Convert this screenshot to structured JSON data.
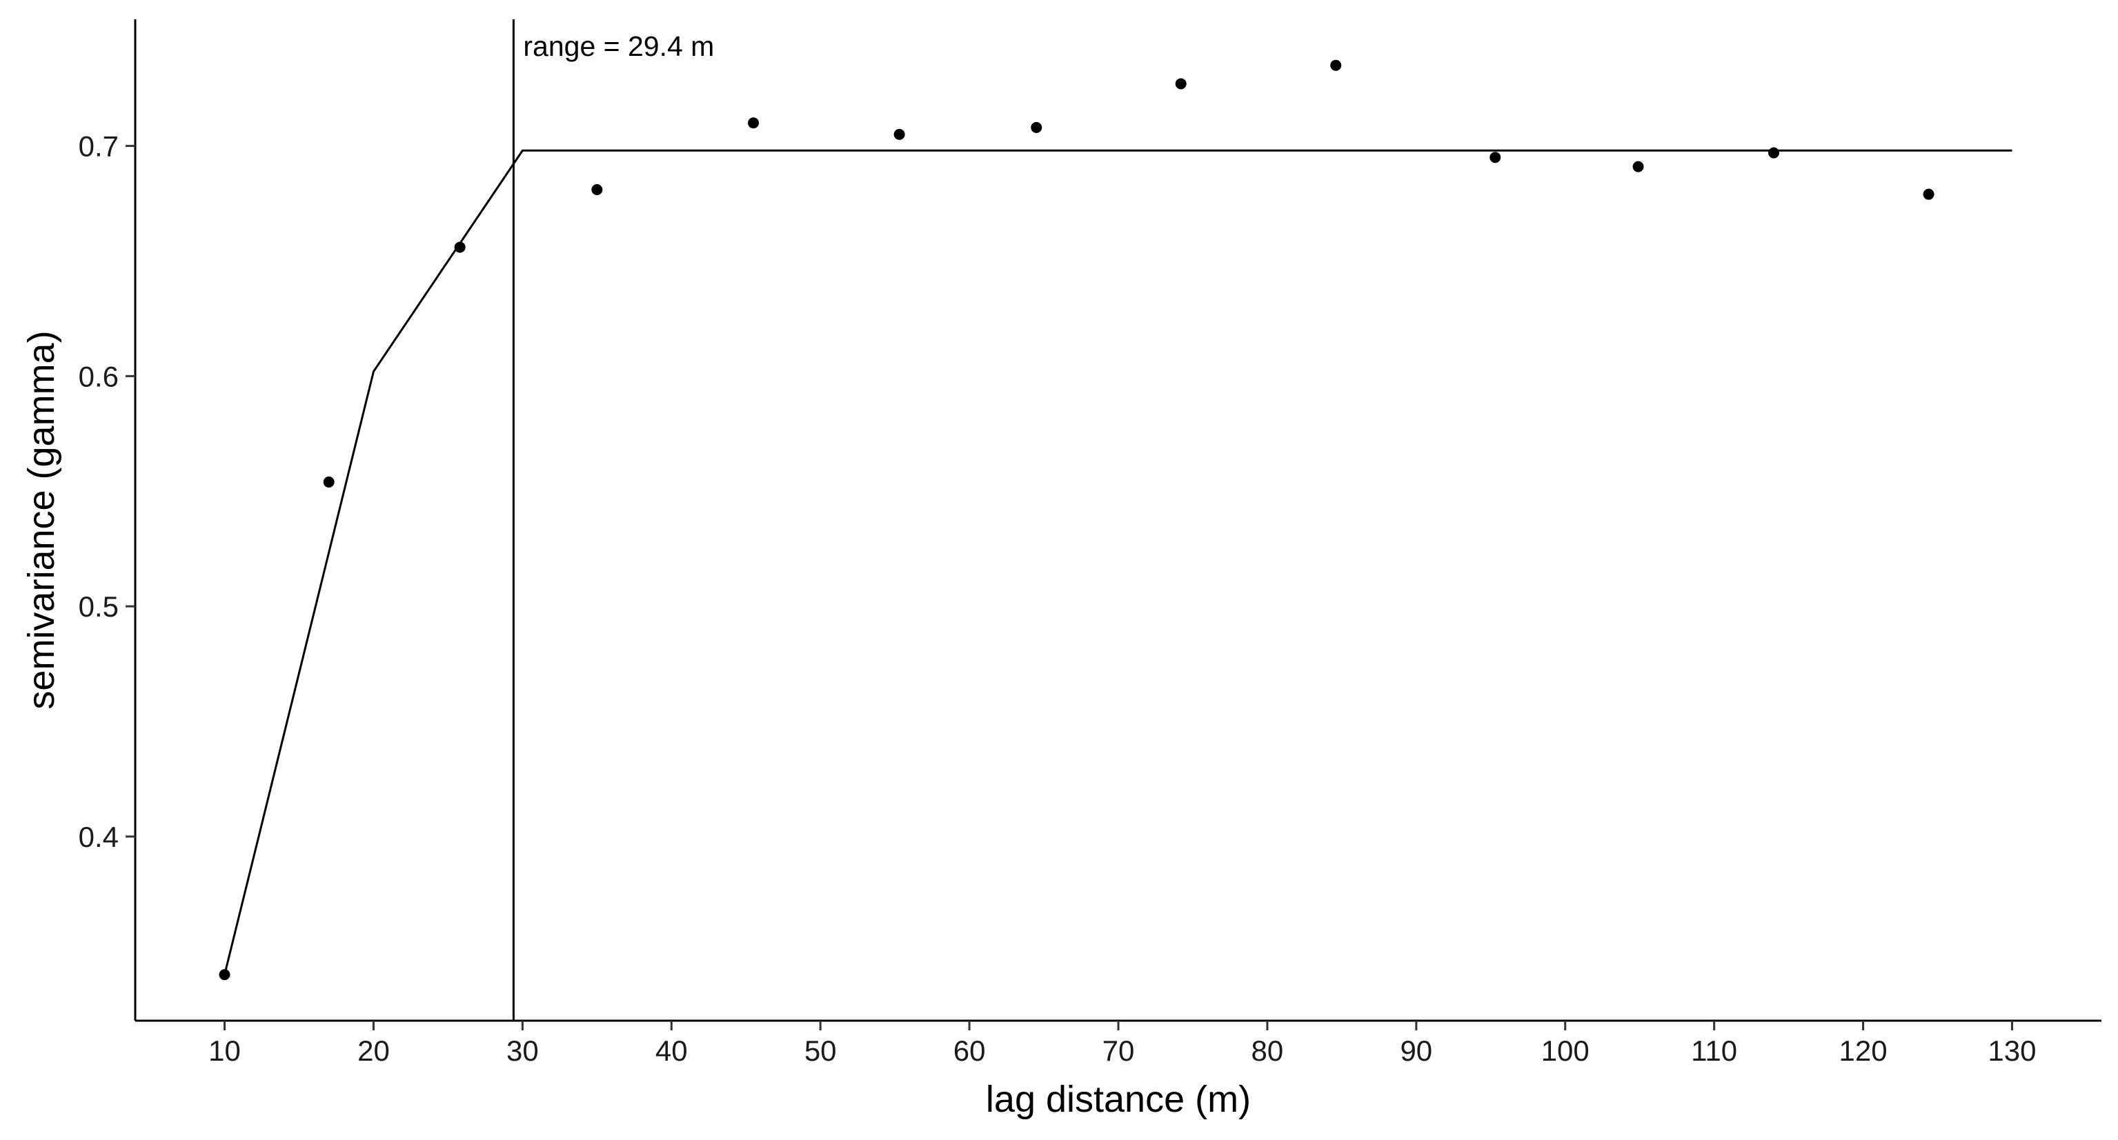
{
  "chart_data": {
    "type": "scatter",
    "title": "",
    "xlabel": "lag distance (m)",
    "ylabel": "semivariance (gamma)",
    "xlim": [
      4,
      136
    ],
    "ylim": [
      0.32,
      0.755
    ],
    "x_ticks": [
      10,
      20,
      30,
      40,
      50,
      60,
      70,
      80,
      90,
      100,
      110,
      120,
      130
    ],
    "x_tick_labels": [
      "10",
      "20",
      "30",
      "40",
      "50",
      "60",
      "70",
      "80",
      "90",
      "100",
      "110",
      "120",
      "130"
    ],
    "y_ticks": [
      0.4,
      0.5,
      0.6,
      0.7
    ],
    "y_tick_labels": [
      "0.4",
      "0.5",
      "0.6",
      "0.7"
    ],
    "grid": false,
    "series": [
      {
        "type": "scatter",
        "x": [
          10.0,
          17.0,
          25.8,
          35.0,
          45.5,
          55.3,
          64.5,
          74.2,
          84.6,
          95.3,
          104.9,
          114.0,
          124.4
        ],
        "y": [
          0.34,
          0.554,
          0.656,
          0.681,
          0.71,
          0.705,
          0.708,
          0.727,
          0.735,
          0.695,
          0.691,
          0.697,
          0.679
        ]
      },
      {
        "type": "line",
        "x": [
          10,
          20,
          30,
          130
        ],
        "y": [
          0.34,
          0.602,
          0.698,
          0.698
        ]
      }
    ],
    "vline": {
      "x": 29.4
    },
    "annotations": [
      {
        "text": "range = 29.4 m",
        "x": 29.4,
        "y": 0.755
      }
    ]
  }
}
